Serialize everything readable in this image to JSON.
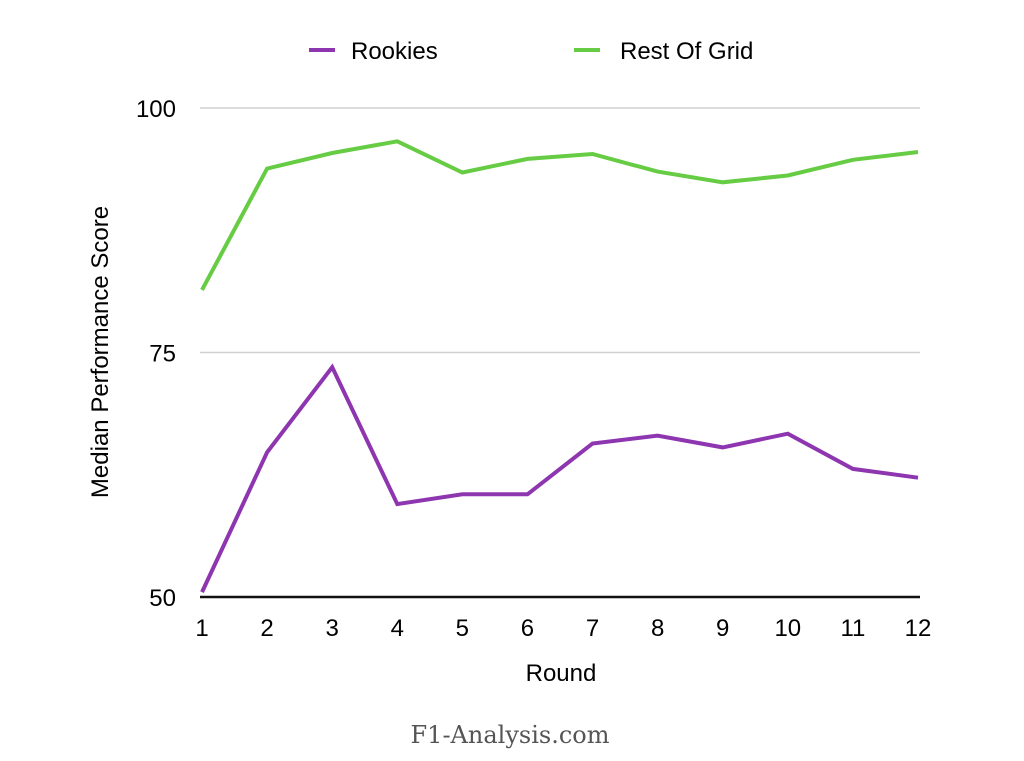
{
  "chart_data": {
    "type": "line",
    "title": "",
    "xlabel": "Round",
    "ylabel": "Median Performance Score",
    "x": [
      1,
      2,
      3,
      4,
      5,
      6,
      7,
      8,
      9,
      10,
      11,
      12
    ],
    "x_tick_labels": [
      "1",
      "2",
      "3",
      "4",
      "5",
      "6",
      "7",
      "8",
      "9",
      "10",
      "11",
      "12"
    ],
    "y_tick_labels": [
      "50",
      "75",
      "100"
    ],
    "yticks": [
      50,
      75,
      100
    ],
    "ylim": [
      50,
      100
    ],
    "grid": true,
    "legend_position": "top",
    "series": [
      {
        "name": "Rookies",
        "color": "#8e35b0",
        "values": [
          50.5,
          64.8,
          73.5,
          59.5,
          60.5,
          60.5,
          65.7,
          66.5,
          65.3,
          66.7,
          63.1,
          62.2
        ]
      },
      {
        "name": "Rest Of Grid",
        "color": "#66cc44",
        "values": [
          81.4,
          93.8,
          95.4,
          96.6,
          93.4,
          94.8,
          95.3,
          93.5,
          92.4,
          93.1,
          94.7,
          95.5
        ]
      }
    ]
  },
  "legend": {
    "items": [
      {
        "label": "Rookies",
        "color": "#8e35b0"
      },
      {
        "label": "Rest Of Grid",
        "color": "#66cc44"
      }
    ]
  },
  "watermark": "F1-Analysis.com"
}
